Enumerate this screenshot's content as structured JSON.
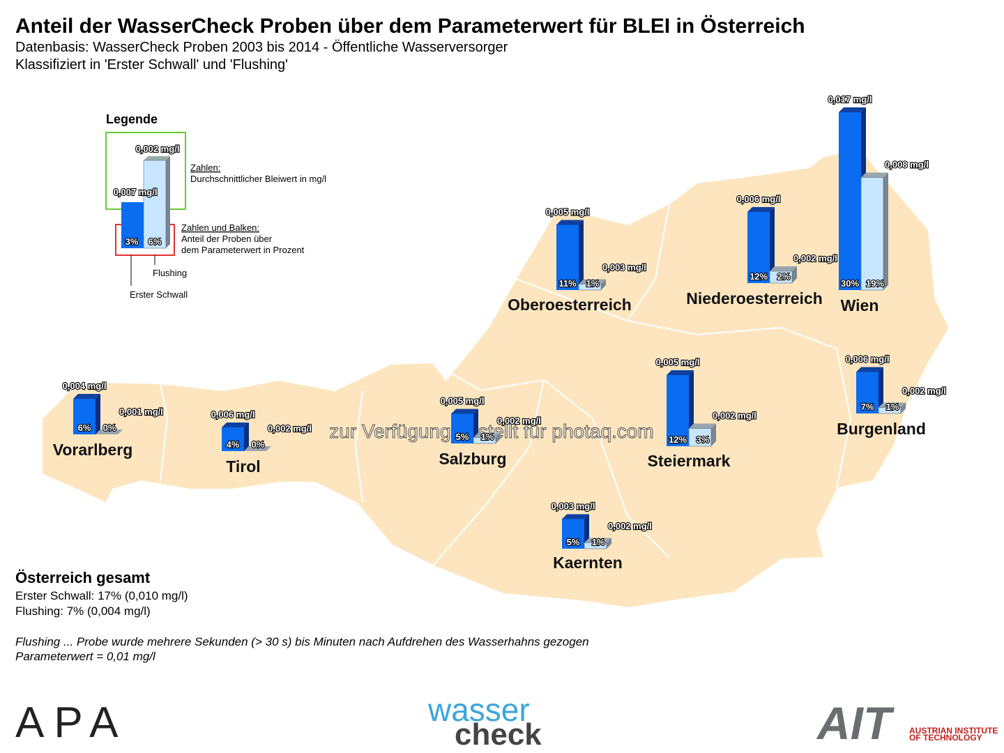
{
  "chart_data": {
    "type": "bar3d",
    "title": "Anteil der WasserCheck Proben über dem Parameterwert für BLEI in Österreich",
    "subtitle": [
      "Datenbasis: WasserCheck Proben 2003 bis 2014 - Öffentliche Wasserversorger",
      "Klassifiziert in 'Erster Schwall' und 'Flushing'"
    ],
    "categories": [
      "Vorarlberg",
      "Tirol",
      "Salzburg",
      "Kaernten",
      "Steiermark",
      "Oberoesterreich",
      "Niederoesterreich",
      "Wien",
      "Burgenland"
    ],
    "series": [
      {
        "name": "Erster Schwall",
        "color": "#0a6cf0",
        "values": [
          6,
          4,
          5,
          5,
          12,
          11,
          12,
          30,
          7
        ],
        "value_labels": [
          "6%",
          "4%",
          "5%",
          "5%",
          "12%",
          "11%",
          "12%",
          "30%",
          "7%"
        ],
        "avg_labels": [
          "0,004 mg/l",
          "0,006 mg/l",
          "0,005 mg/l",
          "0,003 mg/l",
          "0,005 mg/l",
          "0,005 mg/l",
          "0,006 mg/l",
          "0,017 mg/l",
          "0,006 mg/l"
        ]
      },
      {
        "name": "Flushing",
        "color": "#c8e6ff",
        "values": [
          0,
          0,
          1,
          1,
          3,
          1,
          2,
          19,
          1
        ],
        "value_labels": [
          "0%",
          "0%",
          "1%",
          "1%",
          "3%",
          "1%",
          "2%",
          "19%",
          "1%"
        ],
        "avg_labels": [
          "0,001 mg/l",
          "0,002 mg/l",
          "0,002 mg/l",
          "0,002 mg/l",
          "0,002 mg/l",
          "0,003 mg/l",
          "0,002 mg/l",
          "0,008 mg/l",
          "0,002 mg/l"
        ]
      }
    ]
  },
  "legend": {
    "title": "Legende",
    "sample_top": [
      "0,007 mg/l",
      "0,002 mg/l"
    ],
    "sample_pct": [
      "3%",
      "6%"
    ],
    "zahlen": "Zahlen:",
    "zahlen_text": "Durchschnittlicher Bleiwert in mg/l",
    "balken": "Zahlen und Balken:",
    "balken_text": [
      "Anteil der Proben über",
      "dem Parameterwert in Prozent"
    ]
  },
  "summary": {
    "title": "Österreich gesamt",
    "lines": [
      "Erster Schwall: 17% (0,010 mg/l)",
      "Flushing: 7% (0,004 mg/l)"
    ]
  },
  "notes": [
    "Flushing ... Probe wurde mehrere Sekunden (> 30 s) bis Minuten nach Aufdrehen des Wasserhahns gezogen",
    "Parameterwert = 0,01 mg/l"
  ],
  "watermark": "zur Verfügung gestellt für photaq.com",
  "logos": {
    "apa": "APA",
    "wasser": "wasser",
    "check": "check",
    "ait": "AIT",
    "ait_name": [
      "AUSTRIAN INSTITUTE",
      "OF TECHNOLOGY"
    ]
  }
}
